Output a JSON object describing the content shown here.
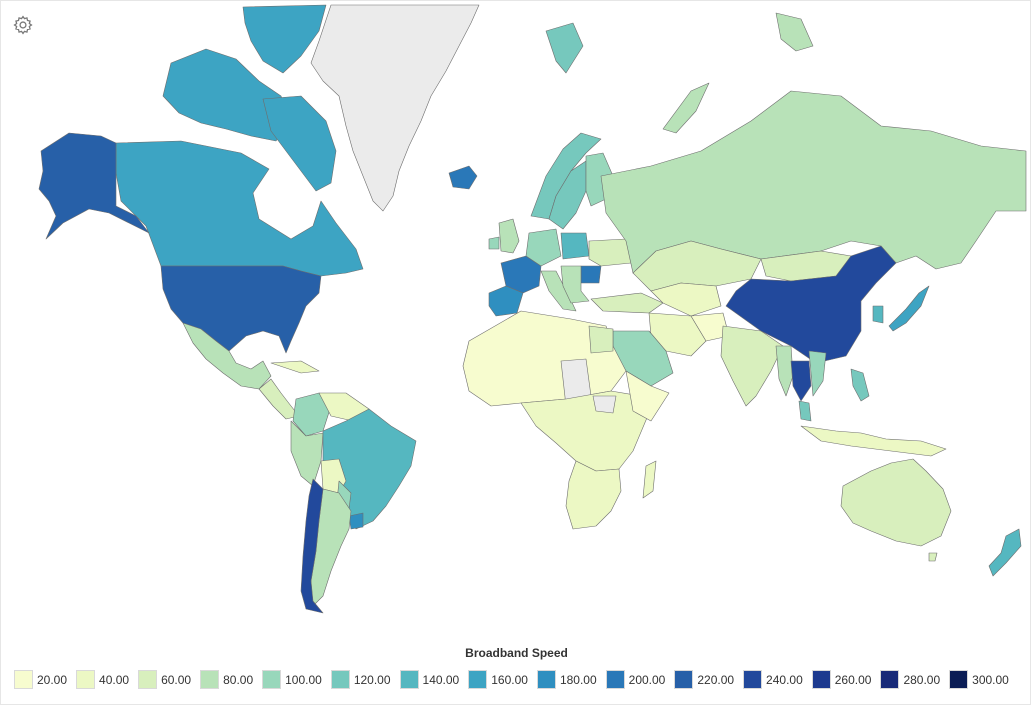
{
  "settings": {
    "icon": "gear-icon"
  },
  "map": {
    "no_data_color": "#ebebeb",
    "ocean_color": "#ffffff",
    "border_color": "#6e6e6e"
  },
  "legend": {
    "title": "Broadband Speed",
    "items": [
      {
        "label": "20.00",
        "color": "#f7fccf"
      },
      {
        "label": "40.00",
        "color": "#ecf8c4"
      },
      {
        "label": "60.00",
        "color": "#d8efbd"
      },
      {
        "label": "80.00",
        "color": "#b8e2b8"
      },
      {
        "label": "100.00",
        "color": "#98d7bb"
      },
      {
        "label": "120.00",
        "color": "#76c8bd"
      },
      {
        "label": "140.00",
        "color": "#55b7c0"
      },
      {
        "label": "160.00",
        "color": "#3da4c3"
      },
      {
        "label": "180.00",
        "color": "#2f8fc0"
      },
      {
        "label": "200.00",
        "color": "#2a78b8"
      },
      {
        "label": "220.00",
        "color": "#2760a8"
      },
      {
        "label": "240.00",
        "color": "#22499c"
      },
      {
        "label": "260.00",
        "color": "#1d3a8f"
      },
      {
        "label": "280.00",
        "color": "#182a78"
      },
      {
        "label": "300.00",
        "color": "#0b1d55"
      }
    ]
  }
}
